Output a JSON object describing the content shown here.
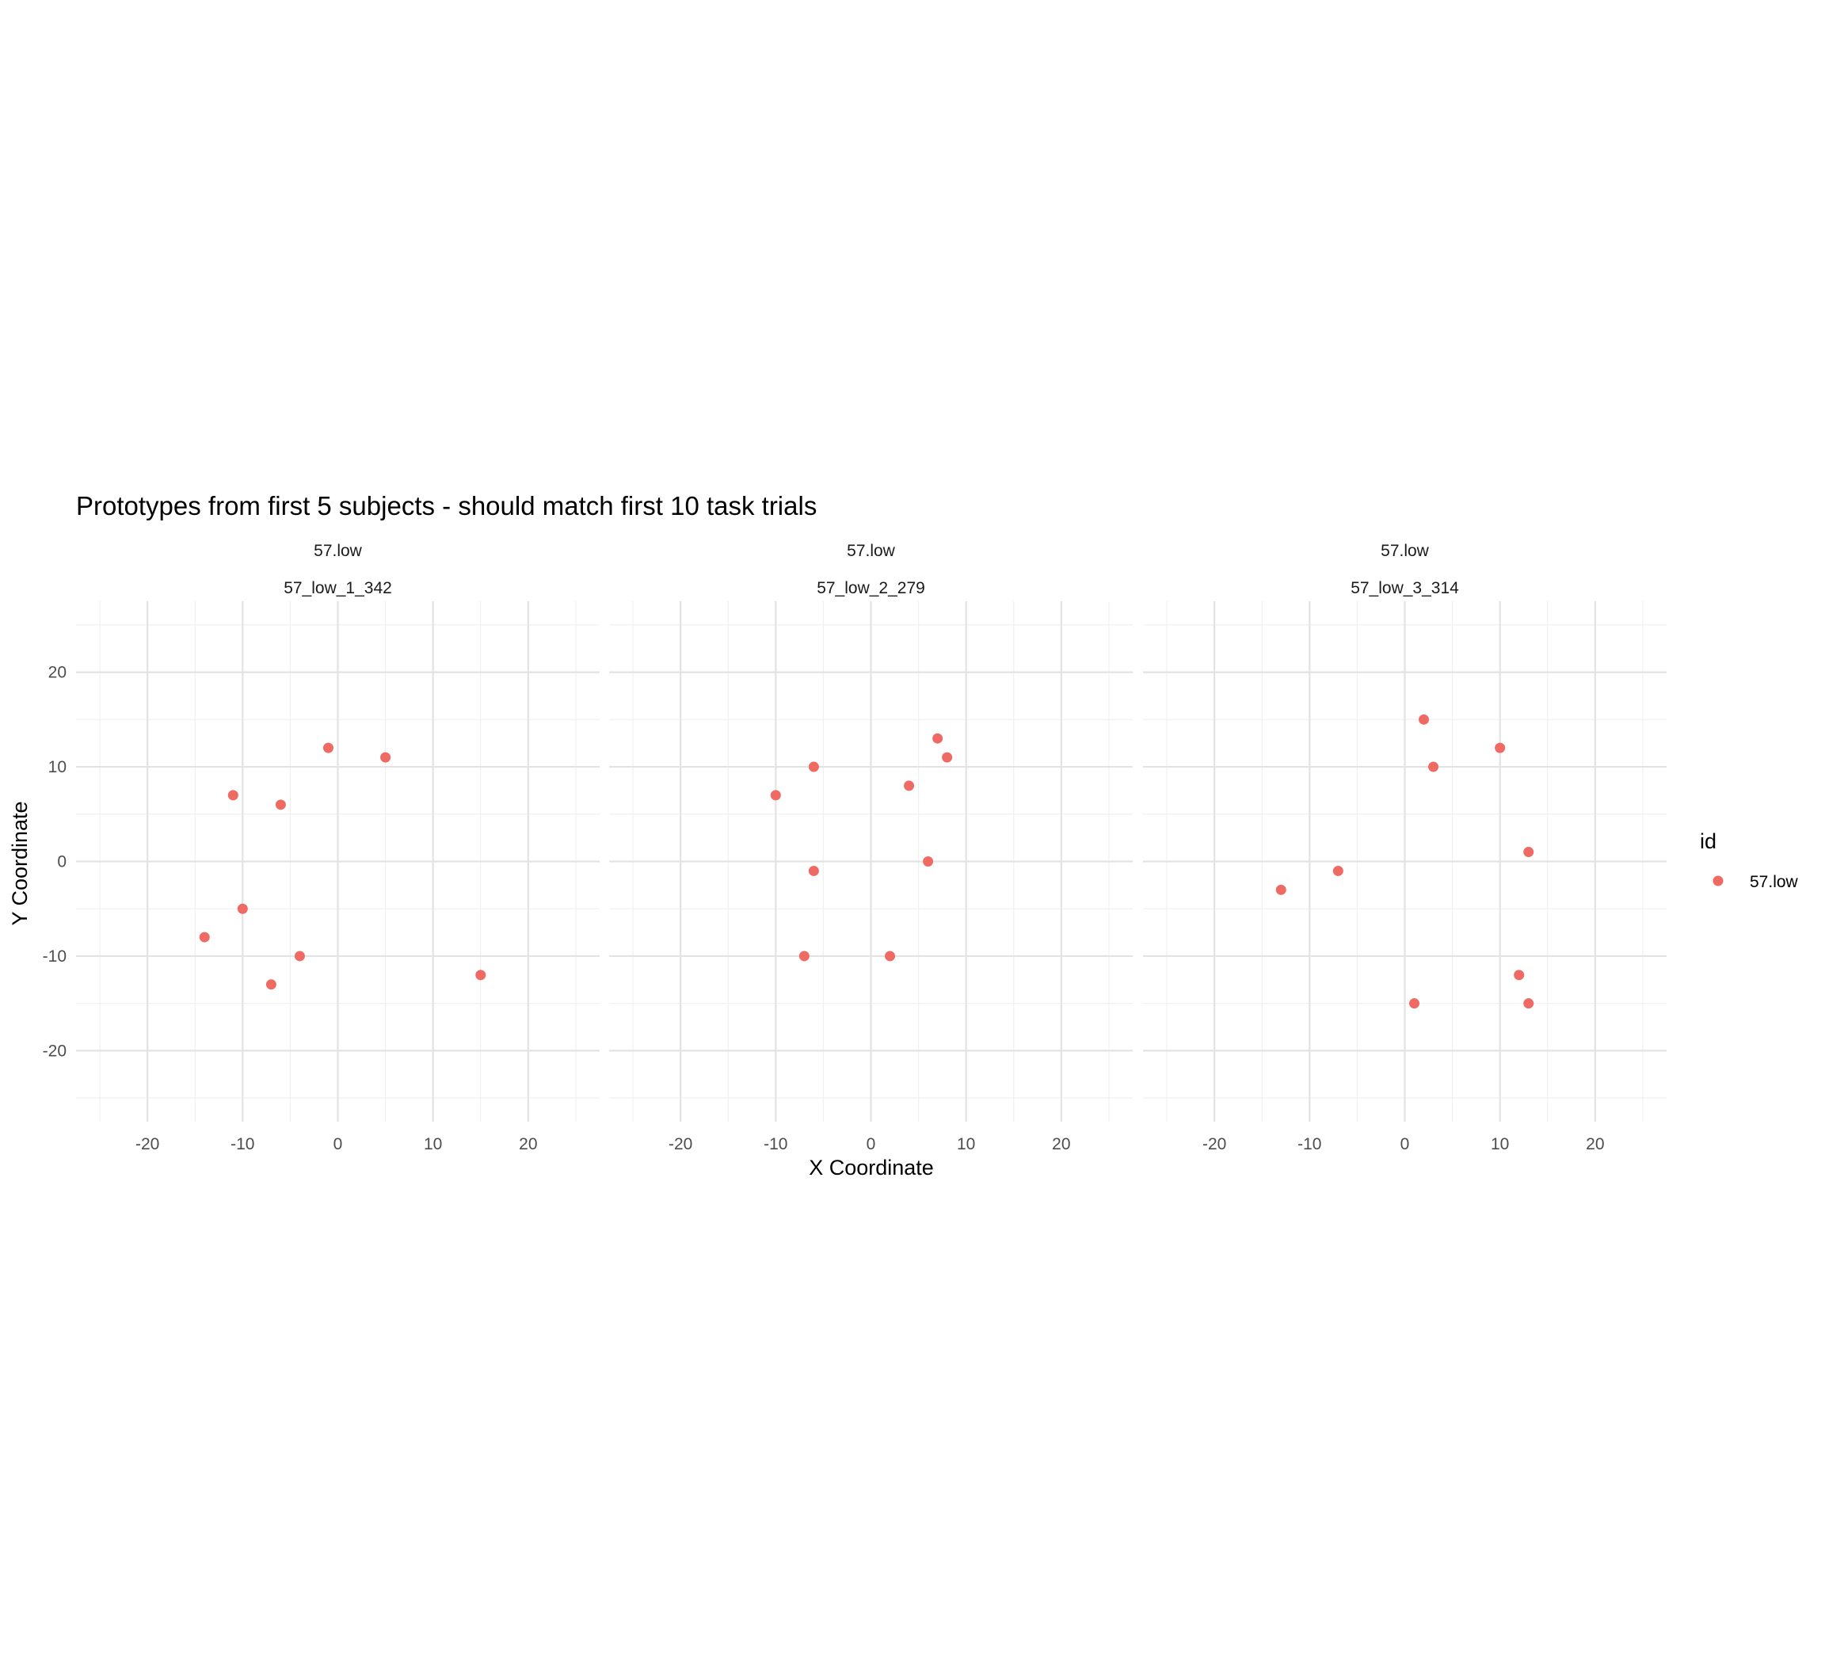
{
  "chart_data": {
    "type": "scatter",
    "title": "Prototypes from first 5 subjects - should match first 10 task trials",
    "xlabel": "X Coordinate",
    "ylabel": "Y Coordinate",
    "xlim": [
      -27.5,
      27.5
    ],
    "ylim": [
      -27.5,
      27.5
    ],
    "x_ticks": [
      -20,
      -10,
      0,
      10,
      20
    ],
    "y_ticks": [
      -20,
      -10,
      0,
      10,
      20
    ],
    "grid": true,
    "legend": {
      "title": "id",
      "position": "right",
      "entries": [
        {
          "label": "57.low",
          "color": "#F06A64"
        }
      ]
    },
    "point_color": "#F06A64",
    "panels": [
      {
        "strip_top": "57.low",
        "strip_bottom": "57_low_1_342",
        "points": [
          {
            "x": -1,
            "y": 12
          },
          {
            "x": 5,
            "y": 11
          },
          {
            "x": -11,
            "y": 7
          },
          {
            "x": -6,
            "y": 6
          },
          {
            "x": -10,
            "y": -5
          },
          {
            "x": -14,
            "y": -8
          },
          {
            "x": -4,
            "y": -10
          },
          {
            "x": -7,
            "y": -13
          },
          {
            "x": 15,
            "y": -12
          }
        ]
      },
      {
        "strip_top": "57.low",
        "strip_bottom": "57_low_2_279",
        "points": [
          {
            "x": 7,
            "y": 13
          },
          {
            "x": 8,
            "y": 11
          },
          {
            "x": -6,
            "y": 10
          },
          {
            "x": 4,
            "y": 8
          },
          {
            "x": -10,
            "y": 7
          },
          {
            "x": 6,
            "y": 0
          },
          {
            "x": -6,
            "y": -1
          },
          {
            "x": -7,
            "y": -10
          },
          {
            "x": 2,
            "y": -10
          }
        ]
      },
      {
        "strip_top": "57.low",
        "strip_bottom": "57_low_3_314",
        "points": [
          {
            "x": 2,
            "y": 15
          },
          {
            "x": 10,
            "y": 12
          },
          {
            "x": 3,
            "y": 10
          },
          {
            "x": 13,
            "y": 1
          },
          {
            "x": -7,
            "y": -1
          },
          {
            "x": -13,
            "y": -3
          },
          {
            "x": 12,
            "y": -12
          },
          {
            "x": 1,
            "y": -15
          },
          {
            "x": 13,
            "y": -15
          }
        ]
      }
    ]
  }
}
